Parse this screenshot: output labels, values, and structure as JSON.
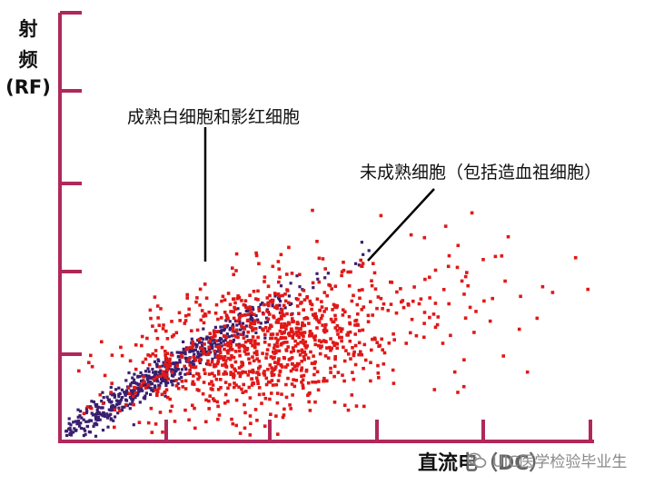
{
  "chart_data": {
    "type": "scatter",
    "title": "",
    "xlabel": "直流电（DC）",
    "ylabel_lines": [
      "射",
      "频",
      "(RF)"
    ],
    "xlim": [
      0,
      10
    ],
    "ylim": [
      0,
      10
    ],
    "grid": false,
    "legend": "none",
    "colors": {
      "axis": "#b0285a",
      "mature": "#3a1e6e",
      "immature": "#e01818"
    },
    "series": [
      {
        "key": "mature",
        "clusters": [
          {
            "cx": 1.7,
            "cy": 1.4,
            "spread_along": 1.7,
            "spread_across": 0.16,
            "angle_deg": 37,
            "count": 700
          }
        ]
      },
      {
        "key": "immature",
        "clusters": [
          {
            "cx": 3.7,
            "cy": 2.2,
            "spread_along": 1.3,
            "spread_across": 0.75,
            "angle_deg": 22,
            "count": 900
          },
          {
            "cx": 5.8,
            "cy": 2.9,
            "spread_along": 1.6,
            "spread_across": 0.9,
            "angle_deg": 20,
            "count": 160
          }
        ]
      }
    ],
    "annotations": [
      {
        "text": "成熟白细胞和影红细胞"
      },
      {
        "text": "未成熟细胞（包括造血祖细胞）"
      }
    ]
  },
  "watermark": {
    "text": "UIC医学检验毕业生",
    "icon": "wechat-icon"
  }
}
